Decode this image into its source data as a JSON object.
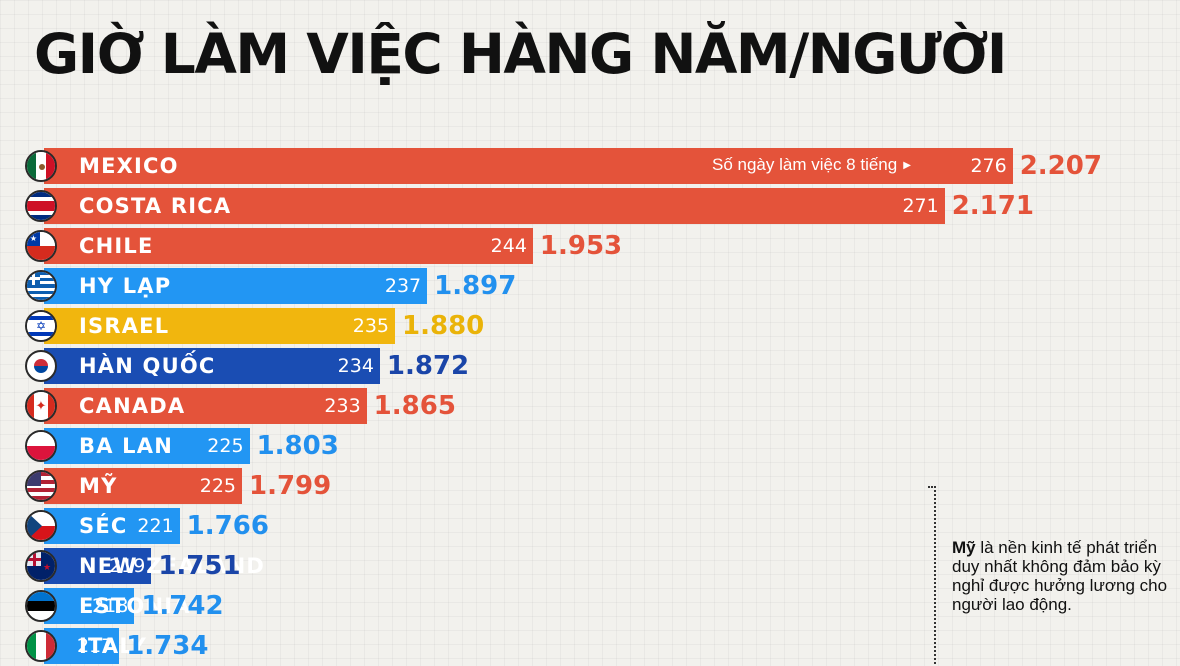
{
  "title": "GIỜ LÀM VIỆC HÀNG NĂM/NGƯỜI",
  "days_note": "Số ngày làm việc 8 tiếng",
  "annotation": {
    "bold": "Mỹ",
    "text": " là nền kinh tế phát triển duy nhất không đảm bảo kỳ nghỉ được hưởng lương cho người lao động."
  },
  "colors": {
    "red": "#e4533a",
    "light_blue": "#2296f3",
    "dark_blue": "#1a4db3",
    "yellow": "#f1b60e",
    "red_text": "#e4533a",
    "light_blue_text": "#2290ee",
    "dark_blue_text": "#1a45a8",
    "yellow_text": "#eab308"
  },
  "chart_data": {
    "type": "bar",
    "orientation": "horizontal",
    "title": "GIỜ LÀM VIỆC HÀNG NĂM/NGƯỜI",
    "categories": [
      "MEXICO",
      "COSTA RICA",
      "CHILE",
      "HY LẠP",
      "ISRAEL",
      "HÀN QUỐC",
      "CANADA",
      "BA LAN",
      "MỸ",
      "SÉC",
      "NEW ZEALAND",
      "ESTONIA",
      "ITALY"
    ],
    "hours": [
      "2.207",
      "2.171",
      "1.953",
      "1.897",
      "1.880",
      "1.872",
      "1.865",
      "1.803",
      "1.799",
      "1.766",
      "1.751",
      "1.742",
      "1.734"
    ],
    "values": [
      2207,
      2171,
      1953,
      1897,
      1880,
      1872,
      1865,
      1803,
      1799,
      1766,
      1751,
      1742,
      1734
    ],
    "days": [
      "276",
      "271",
      "244",
      "237",
      "235",
      "234",
      "233",
      "225",
      "225",
      "221",
      "219",
      "218",
      "217"
    ],
    "bar_colors": [
      "red",
      "red",
      "red",
      "light_blue",
      "yellow",
      "dark_blue",
      "red",
      "light_blue",
      "red",
      "light_blue",
      "dark_blue",
      "light_blue",
      "light_blue"
    ],
    "flags": [
      "mexico-flag",
      "costa-rica-flag",
      "chile-flag",
      "greece-flag",
      "israel-flag",
      "south-korea-flag",
      "canada-flag",
      "poland-flag",
      "usa-flag",
      "czech-flag",
      "new-zealand-flag",
      "estonia-flag",
      "italy-flag"
    ]
  }
}
